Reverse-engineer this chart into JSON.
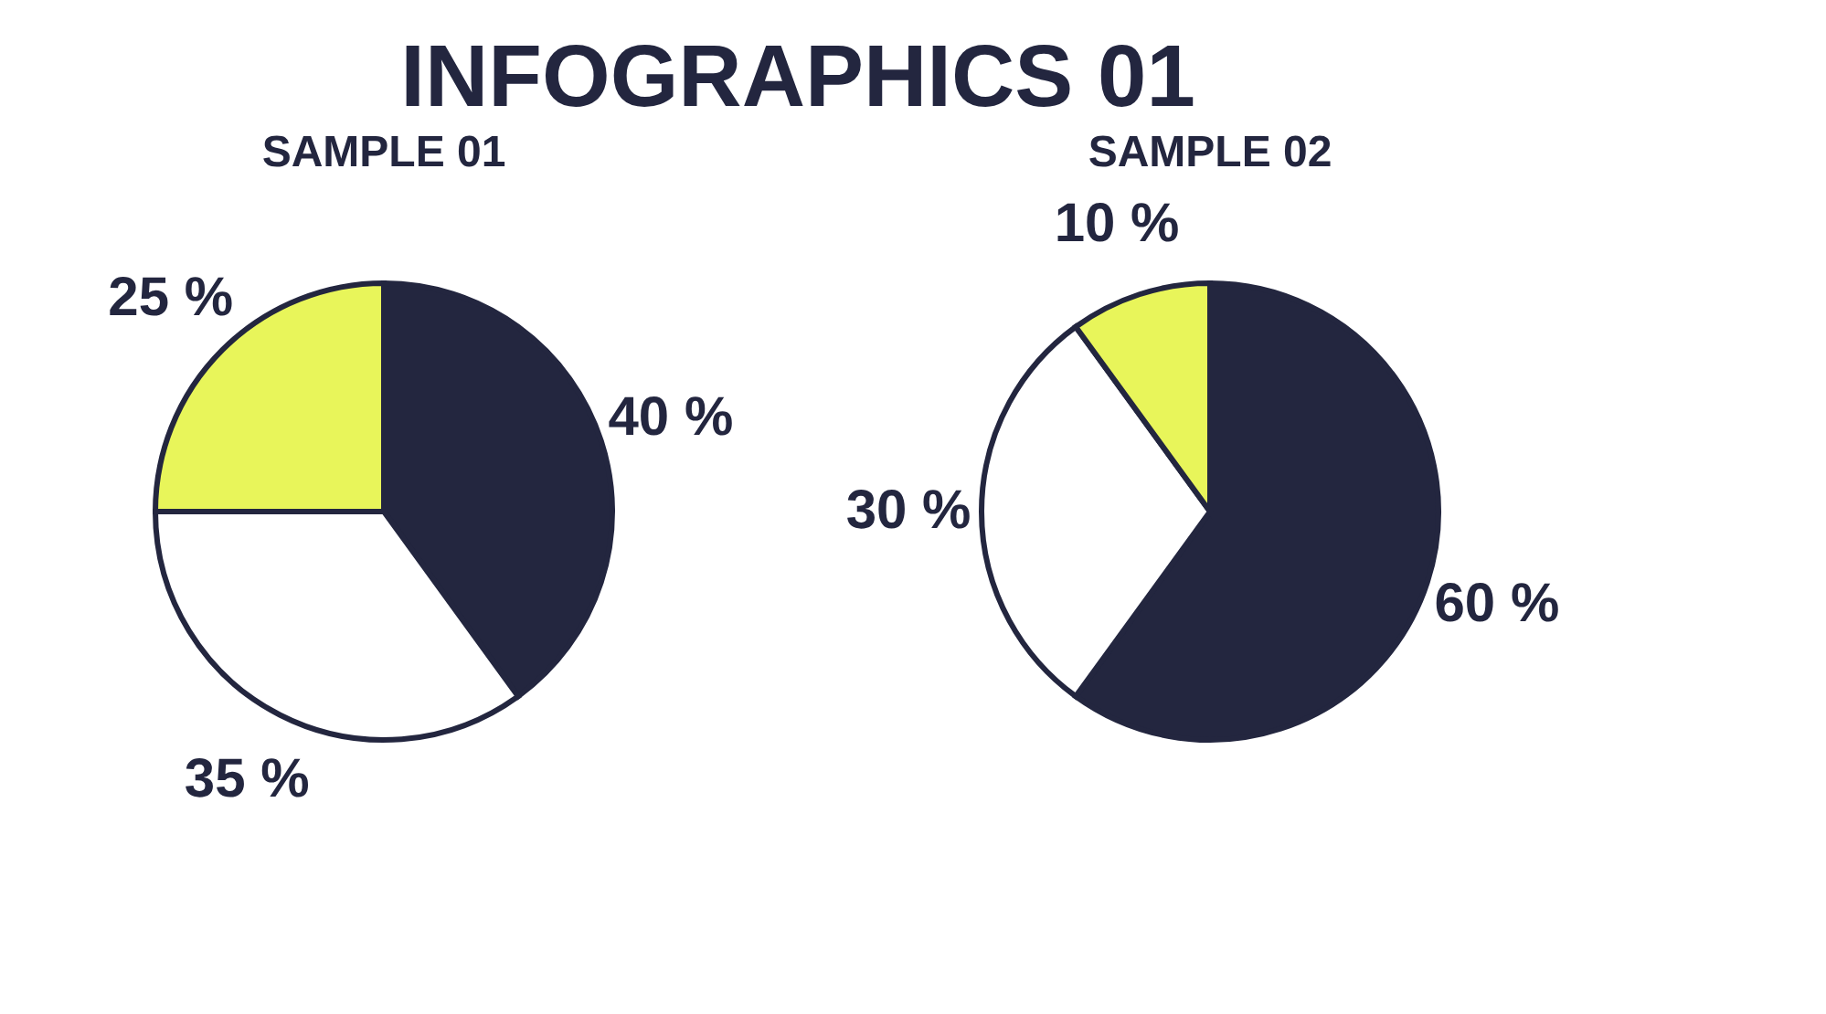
{
  "chart_data": [
    {
      "type": "pie",
      "title": "SAMPLE 01",
      "annotations": [
        "INFOGRAPHICS 01"
      ],
      "categories": [
        null,
        null,
        null
      ],
      "values": [
        40,
        35,
        25
      ],
      "colors": [
        "#23263f",
        "#ffffff",
        "#e8f55a"
      ],
      "value_labels": [
        "40 %",
        "35 %",
        "25 %"
      ]
    },
    {
      "type": "pie",
      "title": "SAMPLE 02",
      "categories": [
        null,
        null,
        null
      ],
      "values": [
        60,
        30,
        10
      ],
      "colors": [
        "#23263f",
        "#ffffff",
        "#e8f55a"
      ],
      "value_labels": [
        "60 %",
        "30 %",
        "10 %"
      ]
    }
  ]
}
